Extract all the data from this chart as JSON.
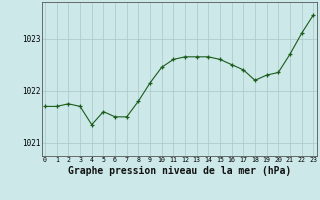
{
  "x": [
    0,
    1,
    2,
    3,
    4,
    5,
    6,
    7,
    8,
    9,
    10,
    11,
    12,
    13,
    14,
    15,
    16,
    17,
    18,
    19,
    20,
    21,
    22,
    23
  ],
  "y": [
    1021.7,
    1021.7,
    1021.75,
    1021.7,
    1021.35,
    1021.6,
    1021.5,
    1021.5,
    1021.8,
    1022.15,
    1022.45,
    1022.6,
    1022.65,
    1022.65,
    1022.65,
    1022.6,
    1022.5,
    1022.4,
    1022.2,
    1022.3,
    1022.35,
    1022.7,
    1023.1,
    1023.45
  ],
  "line_color": "#1a5c1a",
  "marker_color": "#1a5c1a",
  "bg_color": "#cce8e8",
  "grid_color": "#aac8c8",
  "xlabel": "Graphe pression niveau de la mer (hPa)",
  "xlabel_fontsize": 7,
  "ytick_labels": [
    "1021",
    "1022",
    "1023"
  ],
  "ytick_vals": [
    1021,
    1022,
    1023
  ],
  "xtick_vals": [
    0,
    1,
    2,
    3,
    4,
    5,
    6,
    7,
    8,
    9,
    10,
    11,
    12,
    13,
    14,
    15,
    16,
    17,
    18,
    19,
    20,
    21,
    22,
    23
  ],
  "ylim": [
    1020.75,
    1023.7
  ],
  "xlim": [
    -0.3,
    23.3
  ]
}
